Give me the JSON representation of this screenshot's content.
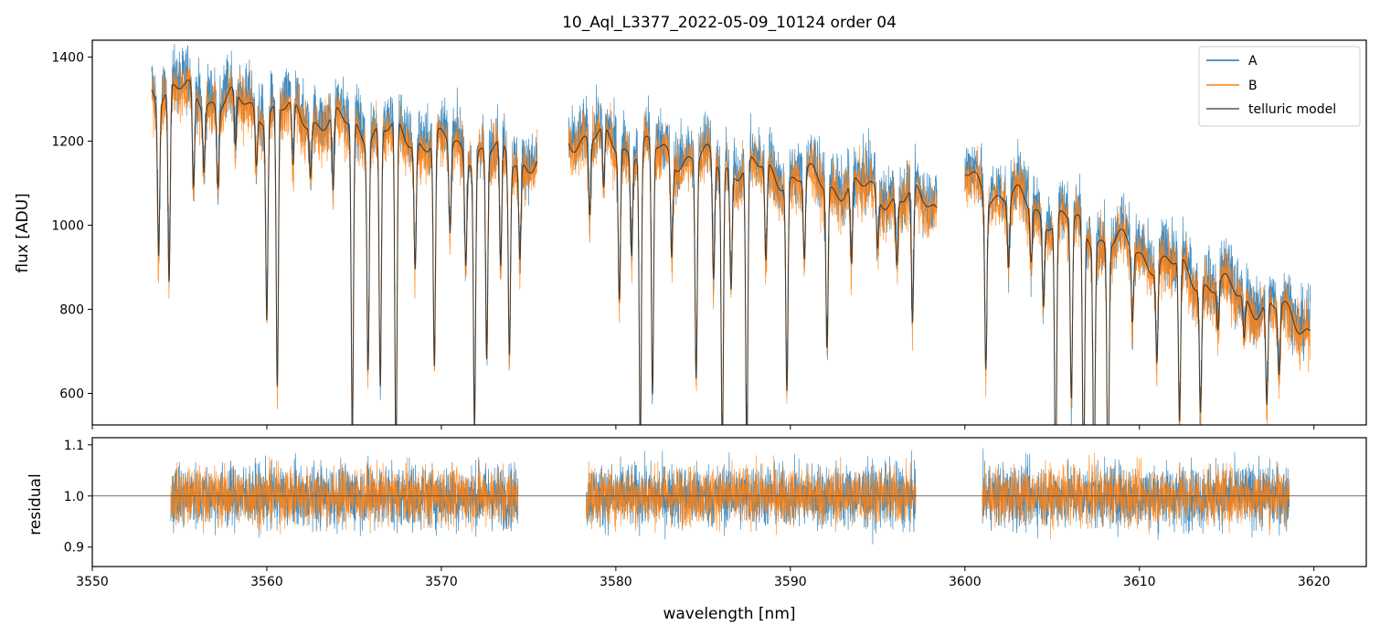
{
  "chart_data": [
    {
      "type": "line",
      "title": "10_Aql_L3377_2022-05-09_10124  order 04",
      "xlabel": "",
      "ylabel": "flux [ADU]",
      "xlim": [
        3550.0,
        3623.0
      ],
      "ylim": [
        525,
        1440
      ],
      "yticks": [
        600,
        800,
        1000,
        1200,
        1400
      ],
      "xticks": [
        3550,
        3560,
        3570,
        3580,
        3590,
        3600,
        3610,
        3620
      ],
      "colors": {
        "A": "#1f77b4",
        "B": "#ff7f0e",
        "model": "#202020"
      },
      "legend": {
        "position": "top-right",
        "entries": [
          "A",
          "B",
          "telluric model"
        ]
      },
      "segments": [
        {
          "x_start": 3553.4,
          "x_end": 3575.5,
          "continuum_start": 1330,
          "continuum_end": 1150
        },
        {
          "x_start": 3577.3,
          "x_end": 3598.4,
          "continuum_start": 1215,
          "continuum_end": 1050
        },
        {
          "x_start": 3600.0,
          "x_end": 3619.8,
          "continuum_start": 1110,
          "continuum_end": 760
        }
      ],
      "absorption_lines": [
        {
          "x": 3553.8,
          "depth": 0.28
        },
        {
          "x": 3554.4,
          "depth": 0.35
        },
        {
          "x": 3555.8,
          "depth": 0.18
        },
        {
          "x": 3556.4,
          "depth": 0.12
        },
        {
          "x": 3557.2,
          "depth": 0.15
        },
        {
          "x": 3558.2,
          "depth": 0.1
        },
        {
          "x": 3559.4,
          "depth": 0.1
        },
        {
          "x": 3560.0,
          "depth": 0.38
        },
        {
          "x": 3560.6,
          "depth": 0.52
        },
        {
          "x": 3561.5,
          "depth": 0.12
        },
        {
          "x": 3562.5,
          "depth": 0.1
        },
        {
          "x": 3563.8,
          "depth": 0.15
        },
        {
          "x": 3564.9,
          "depth": 0.6
        },
        {
          "x": 3565.8,
          "depth": 0.45
        },
        {
          "x": 3566.5,
          "depth": 0.5
        },
        {
          "x": 3567.4,
          "depth": 0.65
        },
        {
          "x": 3568.5,
          "depth": 0.25
        },
        {
          "x": 3569.6,
          "depth": 0.45
        },
        {
          "x": 3570.5,
          "depth": 0.18
        },
        {
          "x": 3571.4,
          "depth": 0.22
        },
        {
          "x": 3571.9,
          "depth": 0.55
        },
        {
          "x": 3572.6,
          "depth": 0.42
        },
        {
          "x": 3573.4,
          "depth": 0.25
        },
        {
          "x": 3573.9,
          "depth": 0.4
        },
        {
          "x": 3574.5,
          "depth": 0.2
        },
        {
          "x": 3578.5,
          "depth": 0.15
        },
        {
          "x": 3579.3,
          "depth": 0.12
        },
        {
          "x": 3580.2,
          "depth": 0.3
        },
        {
          "x": 3580.9,
          "depth": 0.2
        },
        {
          "x": 3581.4,
          "depth": 0.6
        },
        {
          "x": 3582.1,
          "depth": 0.5
        },
        {
          "x": 3583.2,
          "depth": 0.2
        },
        {
          "x": 3584.6,
          "depth": 0.45
        },
        {
          "x": 3585.6,
          "depth": 0.25
        },
        {
          "x": 3586.1,
          "depth": 0.6
        },
        {
          "x": 3586.6,
          "depth": 0.25
        },
        {
          "x": 3587.5,
          "depth": 0.6
        },
        {
          "x": 3588.6,
          "depth": 0.2
        },
        {
          "x": 3589.8,
          "depth": 0.45
        },
        {
          "x": 3590.8,
          "depth": 0.18
        },
        {
          "x": 3592.1,
          "depth": 0.35
        },
        {
          "x": 3593.5,
          "depth": 0.18
        },
        {
          "x": 3595.0,
          "depth": 0.12
        },
        {
          "x": 3596.1,
          "depth": 0.15
        },
        {
          "x": 3597.0,
          "depth": 0.3
        },
        {
          "x": 3601.2,
          "depth": 0.38
        },
        {
          "x": 3602.5,
          "depth": 0.15
        },
        {
          "x": 3603.8,
          "depth": 0.12
        },
        {
          "x": 3604.5,
          "depth": 0.2
        },
        {
          "x": 3605.2,
          "depth": 0.6
        },
        {
          "x": 3606.1,
          "depth": 0.42
        },
        {
          "x": 3606.8,
          "depth": 0.6
        },
        {
          "x": 3607.4,
          "depth": 0.6
        },
        {
          "x": 3608.2,
          "depth": 0.6
        },
        {
          "x": 3609.6,
          "depth": 0.18
        },
        {
          "x": 3611.0,
          "depth": 0.25
        },
        {
          "x": 3612.3,
          "depth": 0.42
        },
        {
          "x": 3613.5,
          "depth": 0.35
        },
        {
          "x": 3614.5,
          "depth": 0.12
        },
        {
          "x": 3616.0,
          "depth": 0.12
        },
        {
          "x": 3617.3,
          "depth": 0.3
        },
        {
          "x": 3618.0,
          "depth": 0.2
        }
      ],
      "noise_amplitude": 55
    },
    {
      "type": "line",
      "title": "",
      "xlabel": "wavelength [nm]",
      "ylabel": "residual",
      "xlim": [
        3550.0,
        3623.0
      ],
      "ylim": [
        0.862,
        1.114
      ],
      "yticks": [
        0.9,
        1.0,
        1.1
      ],
      "ytick_labels": [
        "0.9",
        "1.0",
        "1.1"
      ],
      "xticks": [
        3550,
        3560,
        3570,
        3580,
        3590,
        3600,
        3610,
        3620
      ],
      "reference_line": 1.0,
      "segments": [
        {
          "x_start": 3554.5,
          "x_end": 3574.4
        },
        {
          "x_start": 3578.3,
          "x_end": 3597.2
        },
        {
          "x_start": 3601.0,
          "x_end": 3618.6
        }
      ],
      "noise_amplitude": 0.045
    }
  ]
}
